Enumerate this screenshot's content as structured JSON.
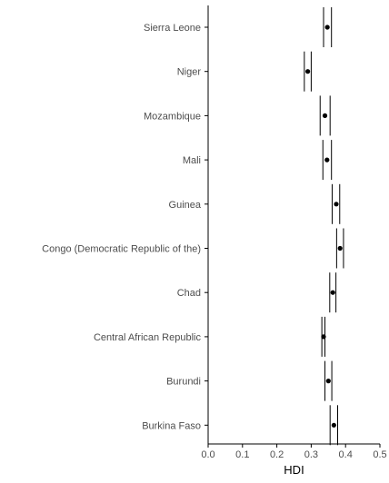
{
  "chart_data": {
    "type": "scatter",
    "subtype": "dot-with-interval",
    "title": "",
    "xlabel": "HDI",
    "ylabel": "",
    "xlim": [
      0,
      0.5
    ],
    "xticks": [
      0.0,
      0.1,
      0.2,
      0.3,
      0.4,
      0.5
    ],
    "xtick_labels": [
      "0.0",
      "0.1",
      "0.2",
      "0.3",
      "0.4",
      "0.5"
    ],
    "grid": false,
    "legend": "none",
    "categories": [
      "Sierra Leone",
      "Niger",
      "Mozambique",
      "Mali",
      "Guinea",
      "Congo (Democratic Republic of the)",
      "Chad",
      "Central African Republic",
      "Burundi",
      "Burkina Faso"
    ],
    "values": [
      0.347,
      0.29,
      0.34,
      0.346,
      0.373,
      0.384,
      0.363,
      0.336,
      0.35,
      0.366
    ],
    "lower": [
      0.336,
      0.28,
      0.326,
      0.334,
      0.361,
      0.374,
      0.354,
      0.331,
      0.34,
      0.355
    ],
    "upper": [
      0.359,
      0.3,
      0.355,
      0.359,
      0.383,
      0.394,
      0.372,
      0.34,
      0.36,
      0.377
    ],
    "colors": {
      "point": "#000000",
      "line": "#000000",
      "axis": "#000000",
      "text": "#4d4d4d"
    }
  }
}
